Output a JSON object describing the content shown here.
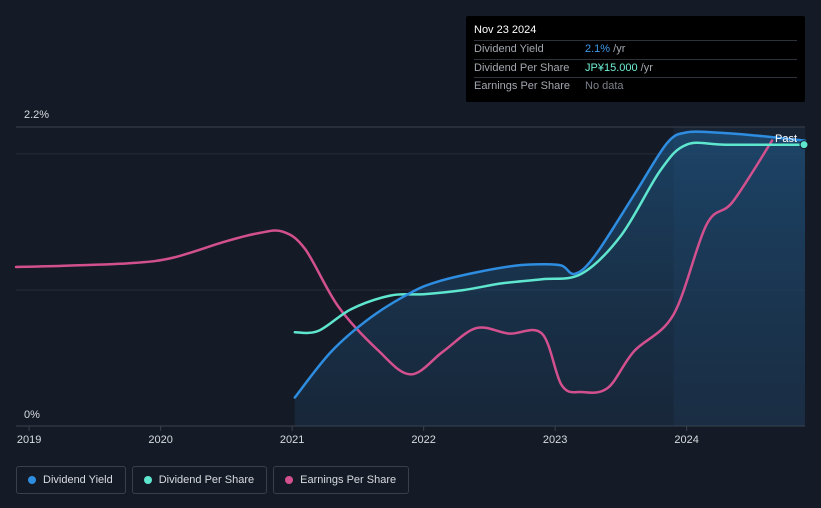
{
  "tooltip": {
    "date": "Nov 23 2024",
    "rows": [
      {
        "label": "Dividend Yield",
        "value": "2.1%",
        "unit": " /yr",
        "color": "#3d9ae8"
      },
      {
        "label": "Dividend Per Share",
        "value": "JP¥15.000",
        "unit": " /yr",
        "color": "#6ff0d6"
      },
      {
        "label": "Earnings Per Share",
        "value": "No data",
        "unit": "",
        "color": "#7c818a"
      }
    ]
  },
  "legend": [
    {
      "label": "Dividend Yield",
      "color": "#2e8de0"
    },
    {
      "label": "Dividend Per Share",
      "color": "#5fe6cf"
    },
    {
      "label": "Earnings Per Share",
      "color": "#d3508f"
    }
  ],
  "chart_data": {
    "type": "line",
    "ylim": [
      0,
      2.2
    ],
    "y_tick_labels": [
      "2.2%",
      "0%"
    ],
    "xlim": [
      2018.9,
      2024.9
    ],
    "x_tick_labels": [
      "2019",
      "2020",
      "2021",
      "2022",
      "2023",
      "2024"
    ],
    "x_tick_values": [
      2019,
      2020,
      2021,
      2022,
      2023,
      2024
    ],
    "past_label": "Past",
    "past_start": 2023.9,
    "series": [
      {
        "name": "Dividend Yield",
        "color": "#2e8de0",
        "x": [
          2021.02,
          2021.3,
          2021.6,
          2021.9,
          2022.1,
          2022.4,
          2022.7,
          2022.9,
          2023.05,
          2023.15,
          2023.3,
          2023.6,
          2023.85,
          2024.0,
          2024.2,
          2024.5,
          2024.9
        ],
        "y": [
          0.21,
          0.55,
          0.8,
          0.98,
          1.06,
          1.13,
          1.18,
          1.19,
          1.18,
          1.12,
          1.25,
          1.7,
          2.08,
          2.16,
          2.16,
          2.14,
          2.1
        ]
      },
      {
        "name": "Dividend Per Share",
        "color": "#5fe6cf",
        "x": [
          2021.02,
          2021.2,
          2021.45,
          2021.75,
          2022.0,
          2022.3,
          2022.6,
          2022.9,
          2023.2,
          2023.5,
          2023.8,
          2024.0,
          2024.3,
          2024.9
        ],
        "y": [
          0.69,
          0.7,
          0.86,
          0.96,
          0.97,
          1.0,
          1.05,
          1.08,
          1.12,
          1.4,
          1.88,
          2.07,
          2.07,
          2.07
        ]
      },
      {
        "name": "Earnings Per Share",
        "color": "#d3508f",
        "x": [
          2018.9,
          2019.3,
          2019.8,
          2020.1,
          2020.5,
          2020.75,
          2020.93,
          2021.1,
          2021.35,
          2021.65,
          2021.9,
          2022.15,
          2022.4,
          2022.65,
          2022.9,
          2023.05,
          2023.2,
          2023.4,
          2023.6,
          2023.9,
          2024.15,
          2024.35,
          2024.65
        ],
        "y": [
          1.17,
          1.18,
          1.2,
          1.24,
          1.36,
          1.42,
          1.43,
          1.3,
          0.88,
          0.56,
          0.38,
          0.55,
          0.72,
          0.68,
          0.68,
          0.3,
          0.25,
          0.28,
          0.55,
          0.82,
          1.48,
          1.65,
          2.1
        ]
      }
    ]
  }
}
